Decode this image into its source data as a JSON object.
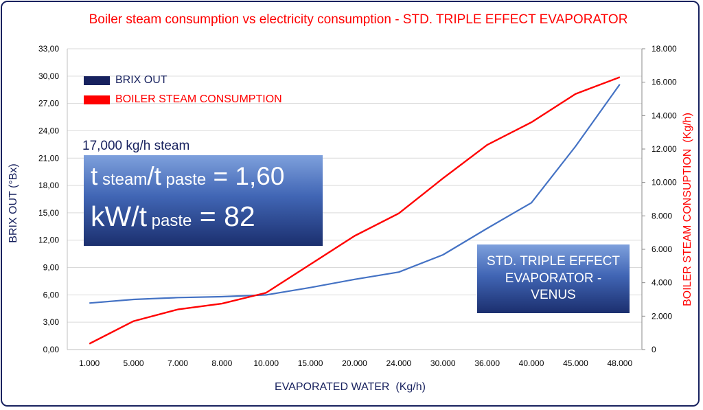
{
  "chart_data": {
    "type": "line",
    "title": "Boiler steam consumption vs electricity consumption - STD. TRIPLE EFFECT EVAPORATOR",
    "xlabel": "EVAPORATED WATER  (Kg/h)",
    "ylabel_left": "BRIX OUT (°Bx)",
    "ylabel_right": "BOILER STEAM CONSUPTION  (Kg/h)",
    "categories": [
      "1.000",
      "5.000",
      "7.000",
      "8.000",
      "10.000",
      "15.000",
      "20.000",
      "24.000",
      "30.000",
      "36.000",
      "40.000",
      "45.000",
      "48.000"
    ],
    "y_left_ticks": [
      "0,00",
      "3,00",
      "6,00",
      "9,00",
      "12,00",
      "15,00",
      "18,00",
      "21,00",
      "24,00",
      "27,00",
      "30,00",
      "33,00"
    ],
    "y_right_ticks": [
      "0",
      "2.000",
      "4.000",
      "6.000",
      "8.000",
      "10.000",
      "12.000",
      "14.000",
      "16.000",
      "18.000"
    ],
    "ylim_left": [
      0,
      33
    ],
    "ylim_right": [
      0,
      18000
    ],
    "grid": true,
    "legend_position": "top-left",
    "series": [
      {
        "name": "BRIX OUT",
        "axis": "left",
        "color": "#4472c4",
        "legend_color": "#17215e",
        "values": [
          5.1,
          5.5,
          5.7,
          5.8,
          6.0,
          6.8,
          7.7,
          8.5,
          10.4,
          13.3,
          16.1,
          22.3,
          29.1
        ]
      },
      {
        "name": "BOILER STEAM CONSUMPTION",
        "axis": "right",
        "color": "#ff0000",
        "legend_color": "#ff0000",
        "values": [
          350,
          1700,
          2400,
          2750,
          3400,
          5100,
          6800,
          8150,
          10250,
          12250,
          13600,
          15300,
          16300
        ]
      }
    ]
  },
  "annotations": {
    "note": "17,000 kg/h steam",
    "box1_line1_a": "t",
    "box1_line1_b": " steam",
    "box1_line1_c": "/t",
    "box1_line1_d": " paste",
    "box1_line1_e": " = 1,60",
    "box1_line2_a": "kW/t",
    "box1_line2_b": " paste",
    "box1_line2_c": " = 82",
    "box2": "STD. TRIPLE EFFECT EVAPORATOR - VENUS"
  },
  "colors": {
    "title": "#ff0000",
    "axis_label_left": "#17215e",
    "axis_label_right": "#ff0000",
    "frame": "#17215e"
  }
}
